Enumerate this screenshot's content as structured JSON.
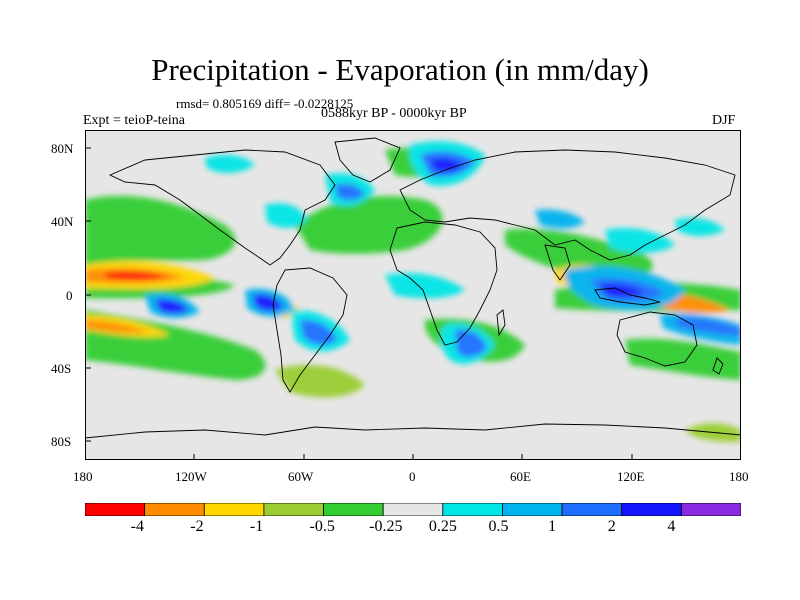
{
  "title": "Precipitation - Evaporation (in mm/day)",
  "stats": "rmsd= 0.805169 diff= -0.0228125",
  "period": "0588kyr BP - 0000kyr BP",
  "experiment": "Expt = teioP-teina",
  "season": "DJF",
  "axes": {
    "y_ticks": [
      "80N",
      "40N",
      "0",
      "40S",
      "80S"
    ],
    "x_ticks": [
      "180",
      "120W",
      "60W",
      "0",
      "60E",
      "120E",
      "180"
    ]
  },
  "colorbar": {
    "labels": [
      "-4",
      "-2",
      "-1",
      "-0.5",
      "-0.25",
      "0.25",
      "0.5",
      "1",
      "2",
      "4"
    ],
    "colors": [
      "#ff0000",
      "#ff8c00",
      "#ffd700",
      "#9acd32",
      "#32cd32",
      "#e6e6e6",
      "#00e5e5",
      "#00b2ee",
      "#1e6fff",
      "#1414ff",
      "#8a2be2"
    ]
  }
}
